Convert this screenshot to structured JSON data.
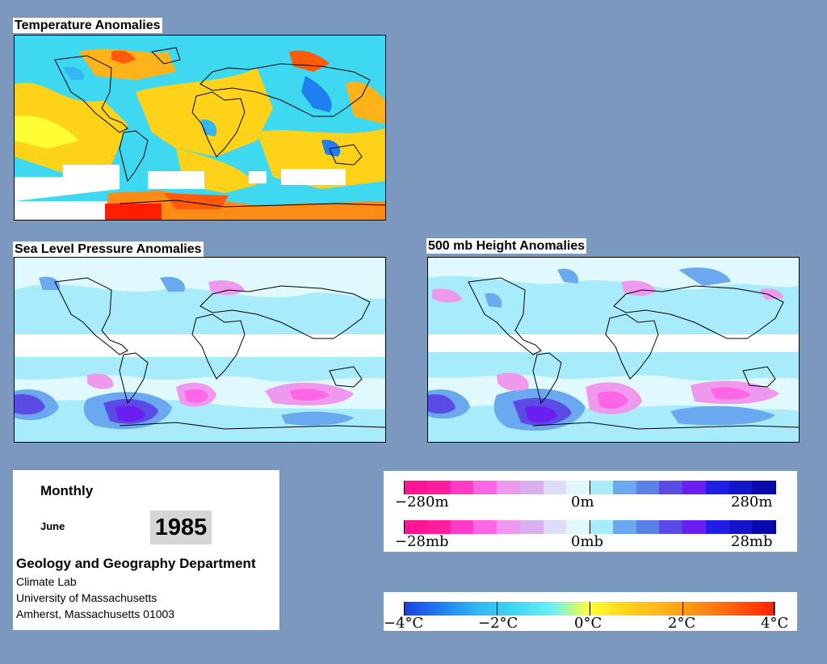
{
  "panels": {
    "temperature": {
      "title": "Temperature Anomalies"
    },
    "slp": {
      "title": "Sea Level Pressure Anomalies"
    },
    "height500": {
      "title": "500 mb Height Anomalies"
    }
  },
  "info": {
    "period": "Monthly",
    "month": "June",
    "year": "1985",
    "department": "Geology and Geography Department",
    "lab": "Climate Lab",
    "university": "University of Massachusetts",
    "address": "Amherst, Massachusetts 01003"
  },
  "legends": {
    "height": {
      "min": "−280m",
      "mid": "0m",
      "max": "280m"
    },
    "pressure": {
      "min": "−28mb",
      "mid": "0mb",
      "max": "28mb"
    },
    "temperature": {
      "t1": "−4°C",
      "t2": "−2°C",
      "t3": "0°C",
      "t4": "2°C",
      "t5": "4°C"
    }
  },
  "colors": {
    "background": "#7b98bf",
    "temp_scale": [
      "#1a3fe0",
      "#1f7ff0",
      "#34b6f2",
      "#3ed8f0",
      "#6df0f6",
      "#ffff33",
      "#ffd21a",
      "#ffb31a",
      "#ff8a14",
      "#ff5a0a",
      "#ff1e00"
    ],
    "anomaly_scale": [
      "#ff1493",
      "#ff1ea0",
      "#ff3cc8",
      "#ff66e6",
      "#ee99ee",
      "#d8b0ee",
      "#ddddf8",
      "#dff9ff",
      "#a8ecfb",
      "#6aa8f0",
      "#5a82e6",
      "#5a4ae6",
      "#6a1ef0",
      "#1e1ee6",
      "#1414c8",
      "#0a0aaa"
    ]
  }
}
